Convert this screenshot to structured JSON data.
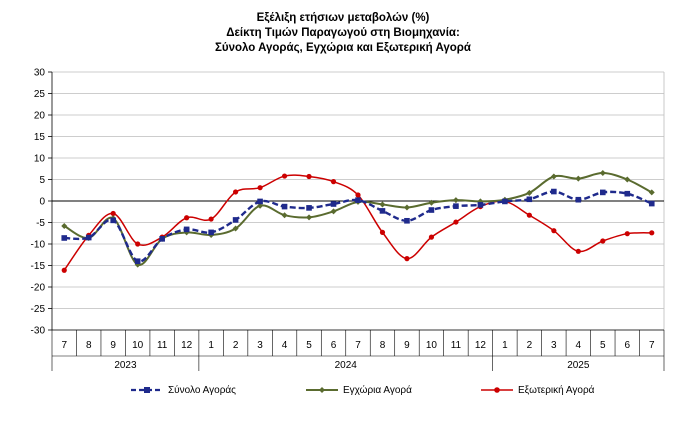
{
  "chart_title_lines": [
    "Εξέλιξη ετήσιων μεταβολών (%)",
    "Δείκτη Τιμών Παραγωγού στη Βιομηχανία:",
    "Σύνολο Αγοράς, Εγχώρια και Εξωτερική Αγορά"
  ],
  "chart_data": {
    "type": "line",
    "title": "Εξέλιξη ετήσιων μεταβολών (%) Δείκτη Τιμών Παραγωγού στη Βιομηχανία: Σύνολο Αγοράς, Εγχώρια και Εξωτερική Αγορά",
    "ylim": [
      -30,
      30
    ],
    "yticks": [
      30,
      25,
      20,
      15,
      10,
      5,
      0,
      -5,
      -10,
      -15,
      -20,
      -25,
      -30
    ],
    "months": [
      "7",
      "8",
      "9",
      "10",
      "11",
      "12",
      "1",
      "2",
      "3",
      "4",
      "5",
      "6",
      "7",
      "8",
      "9",
      "10",
      "11",
      "12",
      "1",
      "2",
      "3",
      "4",
      "5",
      "6",
      "7"
    ],
    "years": [
      {
        "label": "2023",
        "start": 0,
        "end": 5
      },
      {
        "label": "2024",
        "start": 6,
        "end": 17
      },
      {
        "label": "2025",
        "start": 18,
        "end": 24
      }
    ],
    "legend_position": "bottom",
    "series": [
      {
        "name": "Σύνολο Αγοράς",
        "color": "#1f2a8c",
        "style": "dashed",
        "marker": "square",
        "values": [
          -8.6,
          -8.5,
          -4.5,
          -14.0,
          -8.8,
          -6.6,
          -7.3,
          -4.4,
          -0.1,
          -1.3,
          -1.6,
          -0.7,
          0.2,
          -2.3,
          -4.6,
          -2.1,
          -1.2,
          -0.9,
          -0.1,
          0.4,
          2.2,
          0.3,
          2.0,
          1.7,
          -0.6
        ]
      },
      {
        "name": "Εγχώρια Αγορά",
        "color": "#5a6b2f",
        "style": "solid",
        "marker": "diamond",
        "values": [
          -5.8,
          -8.6,
          -4.0,
          -14.8,
          -8.8,
          -7.3,
          -7.9,
          -6.4,
          -1.1,
          -3.3,
          -3.8,
          -2.4,
          -0.2,
          -0.8,
          -1.5,
          -0.4,
          0.2,
          -0.1,
          0.3,
          1.9,
          5.7,
          5.2,
          6.5,
          5.0,
          2.0
        ]
      },
      {
        "name": "Εξωτερική Αγορά",
        "color": "#cc0000",
        "style": "solid",
        "marker": "circle",
        "values": [
          -16.1,
          -8.0,
          -2.9,
          -10.0,
          -8.4,
          -3.9,
          -4.2,
          2.1,
          3.1,
          5.8,
          5.7,
          4.5,
          1.4,
          -7.3,
          -13.4,
          -8.4,
          -4.9,
          -1.3,
          -0.1,
          -3.3,
          -6.9,
          -11.7,
          -9.3,
          -7.6,
          -7.4
        ]
      }
    ]
  }
}
